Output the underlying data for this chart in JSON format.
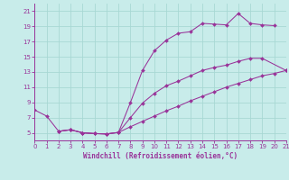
{
  "bg_color": "#c8ecea",
  "grid_color": "#a8d8d4",
  "line_color": "#993399",
  "xlabel": "Windchill (Refroidissement éolien,°C)",
  "xlim": [
    0,
    21
  ],
  "ylim": [
    4,
    22
  ],
  "xticks": [
    0,
    1,
    2,
    3,
    4,
    5,
    6,
    7,
    8,
    9,
    10,
    11,
    12,
    13,
    14,
    15,
    16,
    17,
    18,
    19,
    20,
    21
  ],
  "yticks": [
    5,
    7,
    9,
    11,
    13,
    15,
    17,
    19,
    21
  ],
  "line1_x": [
    0,
    1,
    2,
    3,
    4,
    5,
    6,
    7,
    8,
    9,
    10,
    11,
    12,
    13,
    14,
    15,
    16,
    17,
    18,
    19,
    20
  ],
  "line1_y": [
    8.0,
    7.2,
    5.2,
    5.4,
    5.0,
    4.9,
    4.85,
    5.05,
    9.0,
    13.2,
    15.8,
    17.2,
    18.1,
    18.3,
    19.4,
    19.3,
    19.2,
    20.7,
    19.4,
    19.2,
    19.1
  ],
  "line2_x": [
    2,
    3,
    4,
    5,
    6,
    7,
    8,
    9,
    10,
    11,
    12,
    13,
    14,
    15,
    16,
    17,
    18,
    19,
    21
  ],
  "line2_y": [
    5.2,
    5.4,
    5.0,
    4.9,
    4.85,
    5.05,
    7.0,
    8.9,
    10.2,
    11.2,
    11.8,
    12.5,
    13.2,
    13.6,
    13.9,
    14.4,
    14.8,
    14.8,
    13.2
  ],
  "line3_x": [
    2,
    3,
    4,
    5,
    6,
    7,
    8,
    9,
    10,
    11,
    12,
    13,
    14,
    15,
    16,
    17,
    18,
    19,
    20,
    21
  ],
  "line3_y": [
    5.2,
    5.4,
    5.0,
    4.9,
    4.85,
    5.05,
    5.8,
    6.5,
    7.2,
    7.9,
    8.5,
    9.2,
    9.8,
    10.4,
    11.0,
    11.5,
    12.0,
    12.5,
    12.8,
    13.2
  ]
}
